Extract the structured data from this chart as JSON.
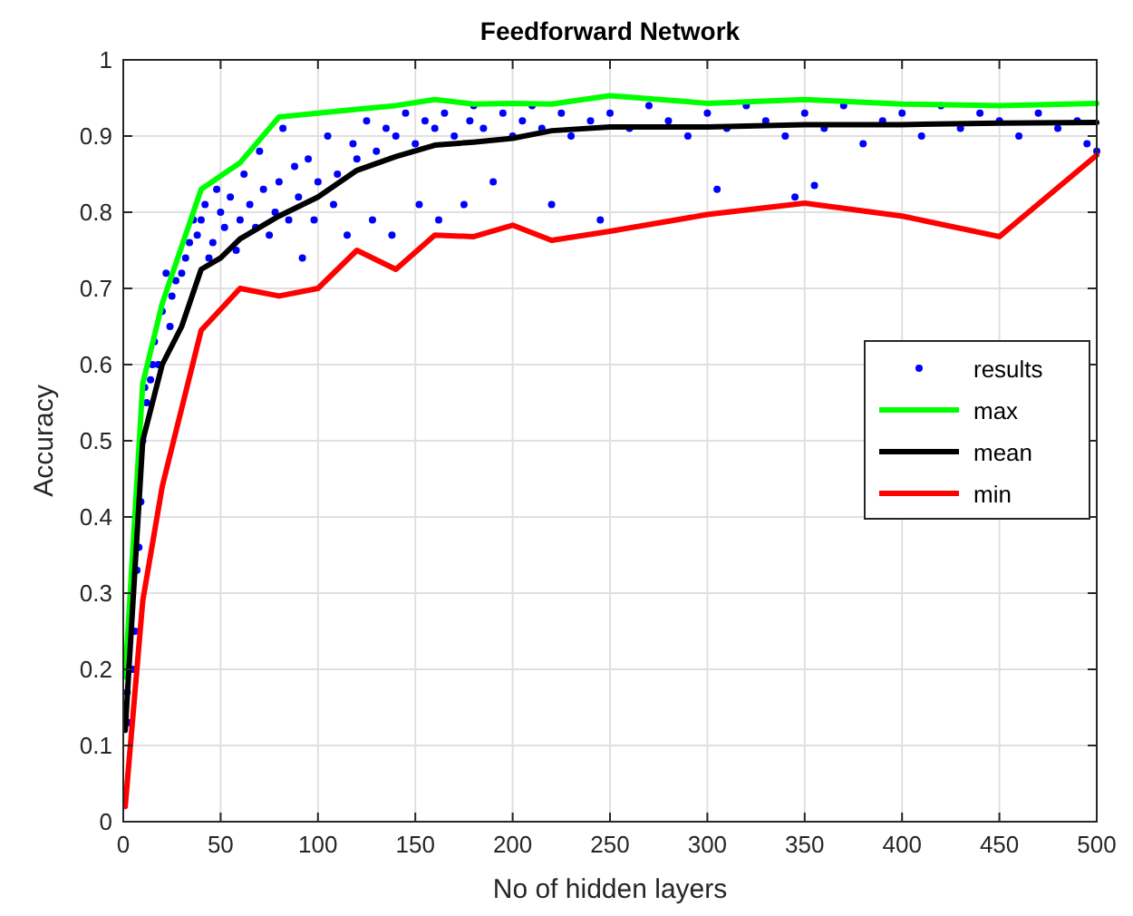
{
  "chart_data": {
    "type": "line",
    "title": "Feedforward Network",
    "xlabel": "No of hidden layers",
    "ylabel": "Accuracy",
    "xlim": [
      0,
      500
    ],
    "xticks": [
      0,
      50,
      100,
      150,
      200,
      250,
      300,
      350,
      400,
      450,
      500
    ],
    "ylim": [
      0,
      1
    ],
    "yticks": [
      0,
      0.1,
      0.2,
      0.3,
      0.4,
      0.5,
      0.6,
      0.7,
      0.8,
      0.9,
      1
    ],
    "grid": true,
    "legend": "right",
    "series": [
      {
        "name": "results",
        "type": "scatter",
        "color": "#0000ff",
        "marker": "circle",
        "x": [
          2,
          3,
          5,
          6,
          7,
          8,
          9,
          10,
          11,
          12,
          14,
          15,
          16,
          18,
          20,
          22,
          24,
          25,
          27,
          30,
          32,
          34,
          36,
          38,
          40,
          42,
          44,
          46,
          48,
          50,
          52,
          55,
          58,
          60,
          62,
          65,
          68,
          70,
          72,
          75,
          78,
          80,
          82,
          85,
          88,
          90,
          92,
          95,
          98,
          100,
          105,
          108,
          110,
          115,
          118,
          120,
          125,
          128,
          130,
          135,
          138,
          140,
          145,
          150,
          152,
          155,
          160,
          162,
          165,
          170,
          175,
          178,
          180,
          185,
          190,
          195,
          200,
          205,
          210,
          215,
          220,
          225,
          230,
          240,
          245,
          250,
          260,
          270,
          280,
          290,
          300,
          305,
          310,
          320,
          330,
          340,
          345,
          350,
          355,
          360,
          370,
          380,
          390,
          400,
          410,
          420,
          430,
          440,
          450,
          460,
          470,
          480,
          490,
          495,
          500
        ],
        "values": [
          0.17,
          0.13,
          0.2,
          0.25,
          0.33,
          0.36,
          0.42,
          0.5,
          0.57,
          0.55,
          0.58,
          0.6,
          0.63,
          0.6,
          0.67,
          0.72,
          0.65,
          0.69,
          0.71,
          0.72,
          0.74,
          0.76,
          0.79,
          0.77,
          0.79,
          0.81,
          0.74,
          0.76,
          0.83,
          0.8,
          0.78,
          0.82,
          0.75,
          0.79,
          0.85,
          0.81,
          0.78,
          0.88,
          0.83,
          0.77,
          0.8,
          0.84,
          0.91,
          0.79,
          0.86,
          0.82,
          0.74,
          0.87,
          0.79,
          0.84,
          0.9,
          0.81,
          0.85,
          0.77,
          0.89,
          0.87,
          0.92,
          0.79,
          0.88,
          0.91,
          0.77,
          0.9,
          0.93,
          0.89,
          0.81,
          0.92,
          0.91,
          0.79,
          0.93,
          0.9,
          0.81,
          0.92,
          0.94,
          0.91,
          0.84,
          0.93,
          0.9,
          0.92,
          0.94,
          0.91,
          0.81,
          0.93,
          0.9,
          0.92,
          0.79,
          0.93,
          0.91,
          0.94,
          0.92,
          0.9,
          0.93,
          0.83,
          0.91,
          0.94,
          0.92,
          0.9,
          0.82,
          0.93,
          0.835,
          0.91,
          0.94,
          0.89,
          0.92,
          0.93,
          0.9,
          0.94,
          0.91,
          0.93,
          0.92,
          0.9,
          0.93,
          0.91,
          0.92,
          0.89,
          0.88
        ]
      },
      {
        "name": "max",
        "color": "#00ff00",
        "x": [
          1,
          10,
          20,
          40,
          60,
          80,
          100,
          120,
          140,
          160,
          180,
          200,
          220,
          250,
          300,
          350,
          400,
          450,
          500
        ],
        "values": [
          0.19,
          0.575,
          0.68,
          0.83,
          0.865,
          0.925,
          0.93,
          0.935,
          0.94,
          0.948,
          0.942,
          0.943,
          0.942,
          0.953,
          0.943,
          0.948,
          0.942,
          0.94,
          0.943
        ]
      },
      {
        "name": "mean",
        "color": "#000000",
        "x": [
          1,
          10,
          20,
          30,
          40,
          50,
          60,
          80,
          100,
          120,
          140,
          160,
          180,
          200,
          220,
          250,
          300,
          350,
          400,
          450,
          500
        ],
        "values": [
          0.12,
          0.5,
          0.6,
          0.65,
          0.725,
          0.74,
          0.765,
          0.795,
          0.82,
          0.855,
          0.873,
          0.888,
          0.892,
          0.897,
          0.907,
          0.912,
          0.912,
          0.915,
          0.915,
          0.917,
          0.918
        ]
      },
      {
        "name": "min",
        "color": "#ff0000",
        "x": [
          1,
          10,
          20,
          40,
          60,
          80,
          100,
          120,
          140,
          160,
          180,
          200,
          220,
          250,
          300,
          350,
          400,
          450,
          500
        ],
        "values": [
          0.02,
          0.29,
          0.44,
          0.645,
          0.7,
          0.69,
          0.7,
          0.75,
          0.725,
          0.77,
          0.768,
          0.783,
          0.763,
          0.775,
          0.797,
          0.812,
          0.795,
          0.768,
          0.875
        ]
      }
    ]
  }
}
